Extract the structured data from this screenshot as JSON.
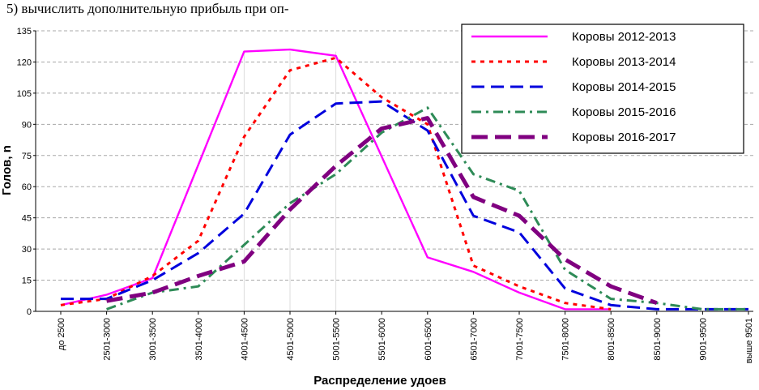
{
  "header_text": "5) вычислить дополнительную прибыль при оп-",
  "chart_data": {
    "type": "line",
    "title": "",
    "xlabel": "Распределение удоев",
    "ylabel": "Голов, n",
    "ylim": [
      0,
      135
    ],
    "y_ticks": [
      0,
      15,
      30,
      45,
      60,
      75,
      90,
      105,
      120,
      135
    ],
    "grid": true,
    "legend_position": "top-right",
    "categories": [
      "до 2500",
      "2501-3000",
      "3001-3500",
      "3501-4000",
      "4001-4500",
      "4501-5000",
      "5001-5500",
      "5501-6000",
      "6001-6500",
      "6501-7000",
      "7001-7500",
      "7501-8000",
      "8001-8500",
      "8501-9000",
      "9001-9500",
      "выше 9501"
    ],
    "series": [
      {
        "name": "Коровы 2012-2013",
        "color": "#ff00ff",
        "values": [
          3,
          8,
          16,
          null,
          125,
          126,
          123,
          null,
          26,
          19,
          9,
          1,
          1,
          null,
          null,
          null
        ]
      },
      {
        "name": "Коровы 2013-2014",
        "color": "#ff0000",
        "values": [
          3,
          6,
          17,
          34,
          84,
          116,
          122,
          103,
          90,
          22,
          12,
          4,
          1,
          null,
          null,
          null
        ]
      },
      {
        "name": "Коровы 2014-2015",
        "color": "#0000dd",
        "values": [
          6,
          6,
          15,
          28,
          47,
          85,
          100,
          101,
          87,
          46,
          38,
          11,
          3,
          1,
          1,
          1
        ]
      },
      {
        "name": "Коровы 2015-2016",
        "color": "#2e8b57",
        "values": [
          null,
          1,
          9,
          12,
          32,
          52,
          66,
          86,
          98,
          66,
          58,
          20,
          6,
          4,
          1,
          1
        ]
      },
      {
        "name": "Коровы 2016-2017",
        "color": "#800080",
        "values": [
          null,
          5,
          9,
          17,
          24,
          49,
          70,
          88,
          93,
          55,
          46,
          25,
          12,
          4,
          null,
          null
        ]
      }
    ]
  }
}
